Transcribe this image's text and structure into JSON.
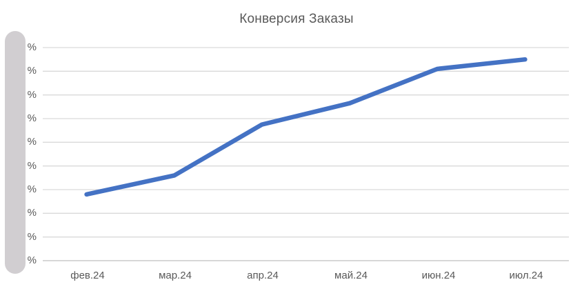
{
  "chart_data": {
    "type": "line",
    "title": "Конверсия Заказы",
    "categories": [
      "фев.24",
      "мар.24",
      "апр.24",
      "май.24",
      "июн.24",
      "июл.24"
    ],
    "series": [
      {
        "name": "Конверсия Заказы",
        "values": [
          2.8,
          3.6,
          5.75,
          6.65,
          8.1,
          8.5
        ]
      }
    ],
    "xlabel": "",
    "ylabel": "",
    "y_tick_label": "%",
    "ylim": [
      0,
      9
    ],
    "y_step": 1,
    "grid": true,
    "legend_position": "none"
  },
  "colors": {
    "line": "#4472c4",
    "gridline": "#d9d9d9",
    "axis_line": "#bfbfbf",
    "title_text": "#595959",
    "tick_text": "#595959",
    "scrollbar": "#d1ced1",
    "background": "#ffffff"
  }
}
